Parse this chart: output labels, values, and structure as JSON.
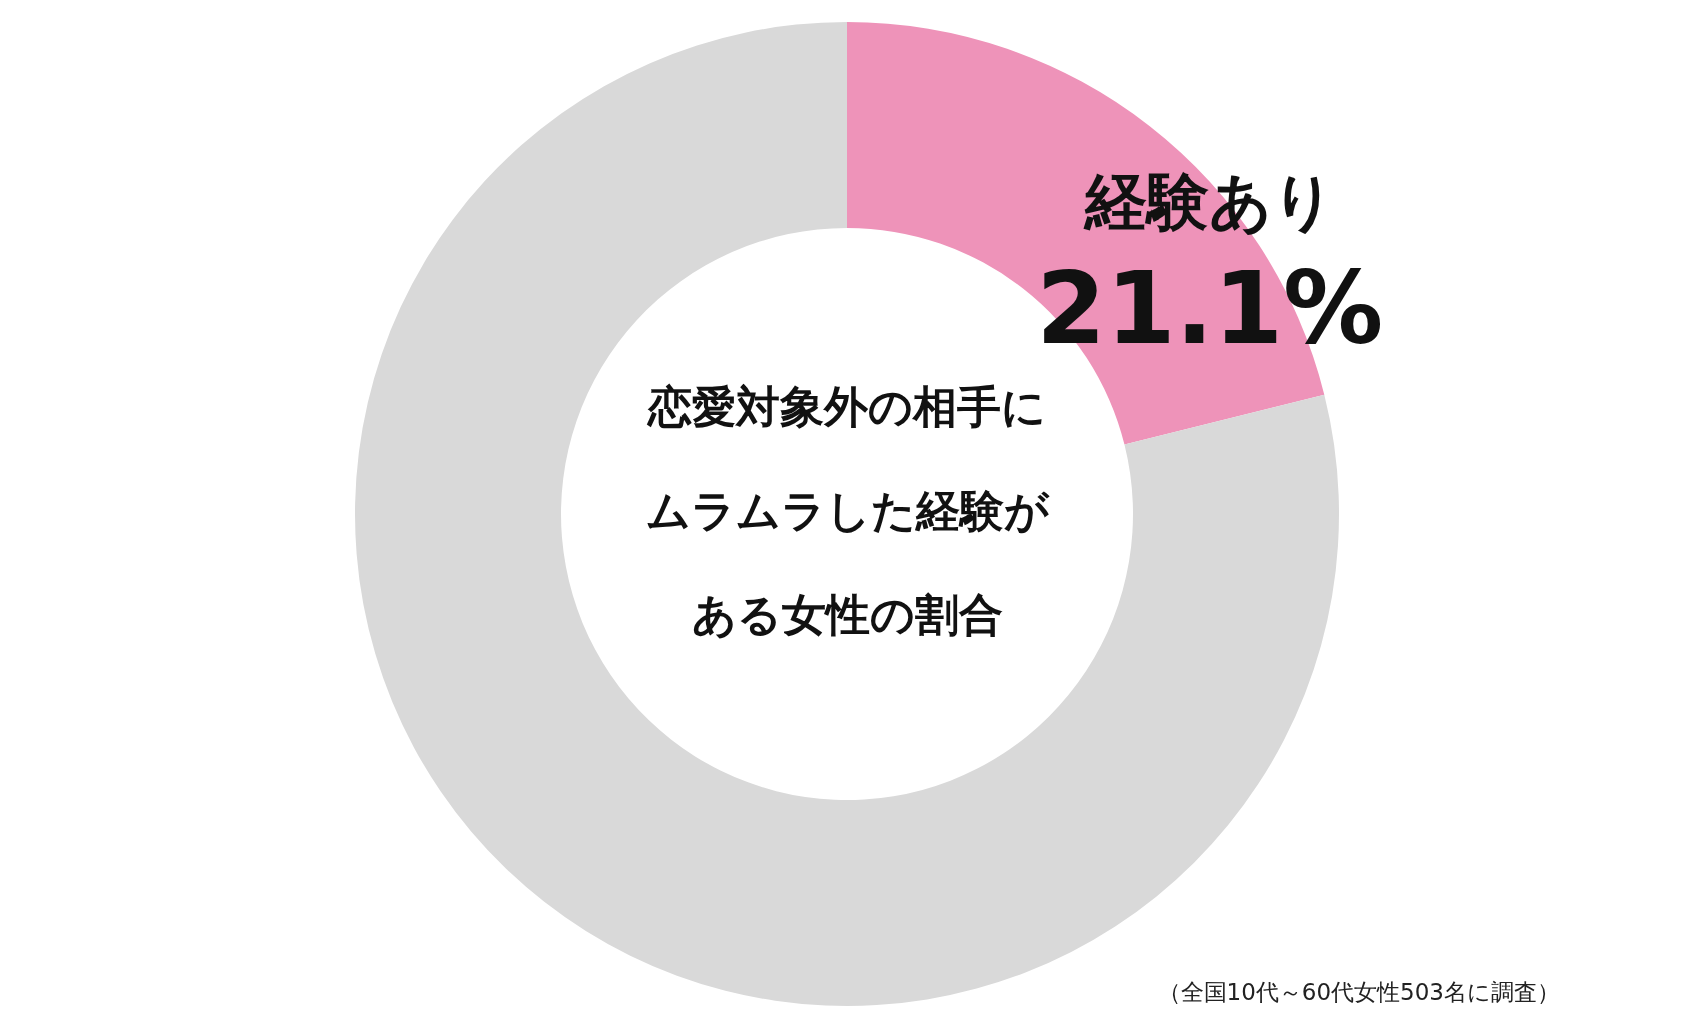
{
  "chart_data": {
    "type": "donut",
    "title": "恋愛対象外の相手にムラムラした経験がある女性の割合",
    "categories": [
      "経験あり",
      null
    ],
    "values": [
      21.1,
      78.9
    ],
    "colors": [
      "#ee93b9",
      "#d9d9d9"
    ],
    "value_labels": [
      "21.1%",
      null
    ],
    "annotations": [
      "（全国10代～60代女性503名に調査）"
    ]
  }
}
